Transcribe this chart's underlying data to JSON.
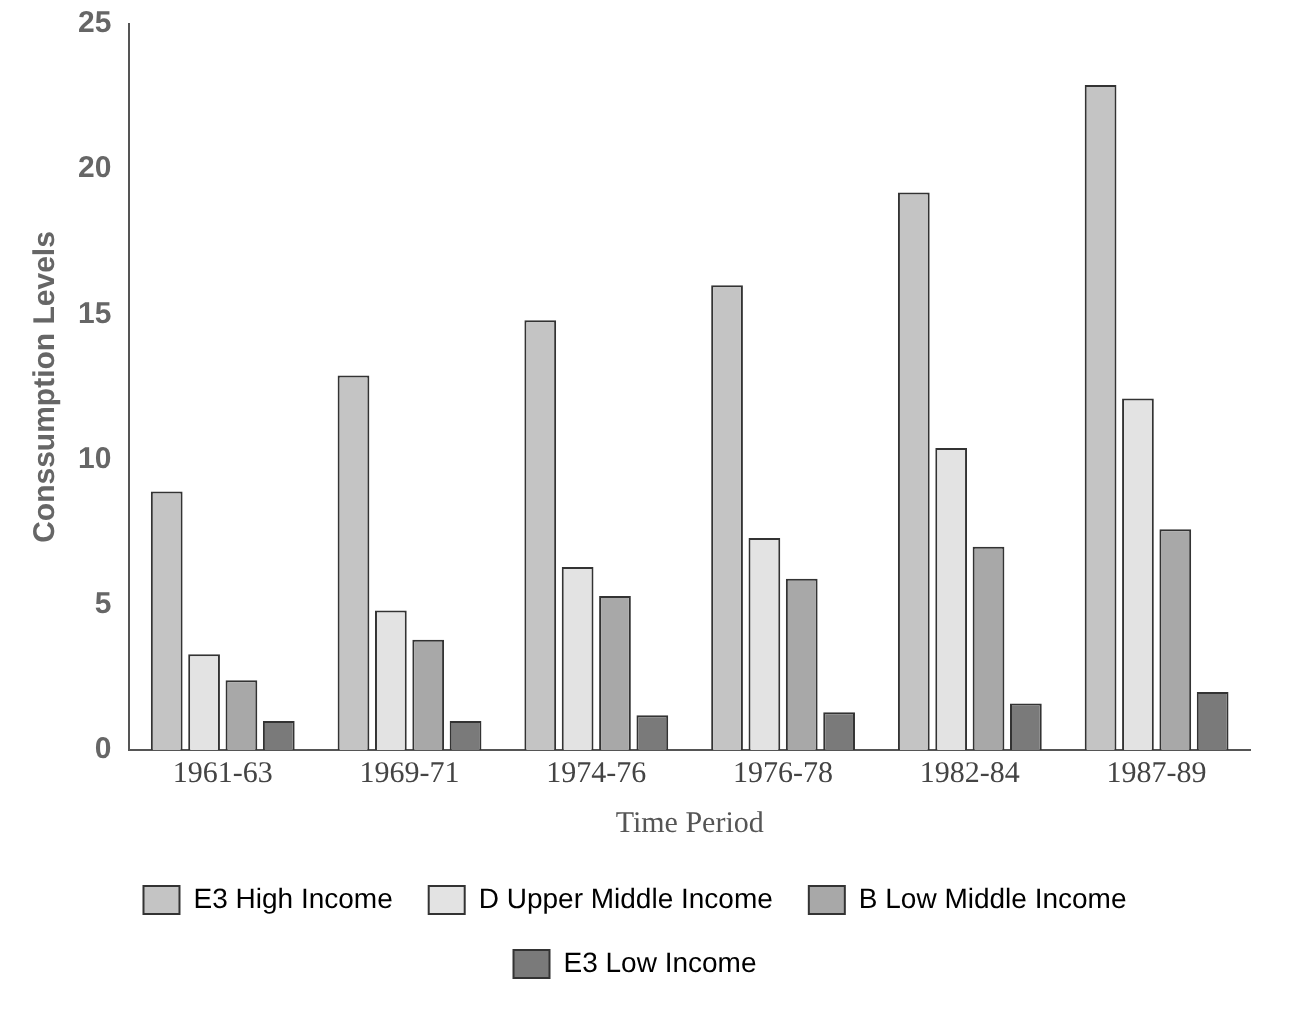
{
  "chart_data": {
    "type": "bar",
    "xlabel": "Time Period",
    "ylabel": "Conssumption Levels",
    "categories": [
      "1961-63",
      "1969-71",
      "1974-76",
      "1976-78",
      "1982-84",
      "1987-89"
    ],
    "series": [
      {
        "name": "E3 High Income",
        "color": "#c4c4c4",
        "values": [
          8.9,
          12.9,
          14.8,
          16.0,
          19.2,
          22.9
        ]
      },
      {
        "name": "D Upper Middle Income",
        "color": "#e3e3e3",
        "values": [
          3.3,
          4.8,
          6.3,
          7.3,
          10.4,
          12.1
        ]
      },
      {
        "name": "B Low Middle Income",
        "color": "#a8a8a8",
        "values": [
          2.4,
          3.8,
          5.3,
          5.9,
          7.0,
          7.6
        ]
      },
      {
        "name": "E3 Low Income",
        "color": "#7a7a7a",
        "values": [
          1.0,
          1.0,
          1.2,
          1.3,
          1.6,
          2.0
        ]
      }
    ],
    "ylim": [
      0,
      25
    ],
    "yticks": [
      0,
      5,
      10,
      15,
      20,
      25
    ],
    "grid": false,
    "legend": "bottom"
  }
}
